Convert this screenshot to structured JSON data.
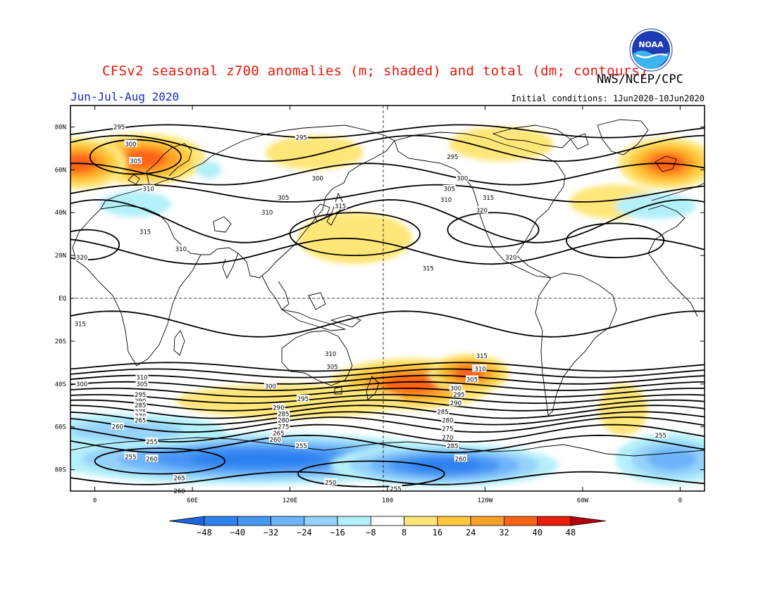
{
  "title": "CFSv2 seasonal z700 anomalies (m; shaded) and total (dm; contours)",
  "agency": "NWS/NCEP/CPC",
  "season": "Jun-Jul-Aug 2020",
  "init_conditions": "Initial conditions: 1Jun2020-10Jun2020",
  "logo_text": "NOAA",
  "colors": {
    "title": "#e8140a",
    "season": "#1428c8",
    "shades": [
      "#1e64dc",
      "#2d82f0",
      "#4696f5",
      "#6eb4fa",
      "#96d2fa",
      "#b4f0fa",
      "#ffffff",
      "#ffe678",
      "#ffc83c",
      "#ffa028",
      "#ff6414",
      "#e61e0a",
      "#b4000a"
    ]
  },
  "chart_data": {
    "type": "heatmap",
    "projection": "cylindrical-equidistant",
    "lon_range": [
      -15,
      15
    ],
    "lat_range": [
      -90,
      90
    ],
    "lat_ticks": [
      "80N",
      "60N",
      "40N",
      "20N",
      "EQ",
      "20S",
      "40S",
      "60S",
      "80S"
    ],
    "lon_ticks": [
      "0",
      "60E",
      "120E",
      "180",
      "120W",
      "60W",
      "0"
    ],
    "colorbar": {
      "bounds": [
        -48,
        -40,
        -32,
        -24,
        -16,
        -8,
        8,
        16,
        24,
        32,
        40,
        48
      ],
      "labels": [
        "−48",
        "−40",
        "−32",
        "−24",
        "−16",
        "−8",
        "8",
        "16",
        "24",
        "32",
        "40",
        "48"
      ]
    },
    "anomaly_blobs": [
      {
        "lon": 30,
        "lat": 65,
        "rlon": 38,
        "rlat": 12,
        "value": 34
      },
      {
        "lon": -10,
        "lat": 63,
        "rlon": 30,
        "rlat": 12,
        "value": 36
      },
      {
        "lon": 352,
        "lat": 63,
        "rlon": 30,
        "rlat": 12,
        "value": 36
      },
      {
        "lon": 135,
        "lat": 68,
        "rlon": 30,
        "rlat": 8,
        "value": 10
      },
      {
        "lon": 250,
        "lat": 72,
        "rlon": 32,
        "rlat": 8,
        "value": 12
      },
      {
        "lon": 320,
        "lat": 45,
        "rlon": 28,
        "rlat": 8,
        "value": 14
      },
      {
        "lon": 160,
        "lat": 28,
        "rlon": 35,
        "rlat": 12,
        "value": 12
      },
      {
        "lon": 195,
        "lat": -40,
        "rlon": 50,
        "rlat": 12,
        "value": 34
      },
      {
        "lon": 230,
        "lat": -35,
        "rlon": 25,
        "rlat": 9,
        "value": 34
      },
      {
        "lon": 120,
        "lat": -48,
        "rlon": 70,
        "rlat": 8,
        "value": 12
      },
      {
        "lon": 325,
        "lat": -52,
        "rlon": 15,
        "rlat": 12,
        "value": 10
      },
      {
        "lon": 25,
        "lat": 44,
        "rlon": 22,
        "rlat": 6,
        "value": -12
      },
      {
        "lon": 345,
        "lat": 43,
        "rlon": 25,
        "rlat": 6,
        "value": -12
      },
      {
        "lon": 70,
        "lat": 60,
        "rlon": 8,
        "rlat": 4,
        "value": -10
      },
      {
        "lon": 100,
        "lat": -75,
        "rlon": 130,
        "rlat": 12,
        "value": -40
      },
      {
        "lon": 215,
        "lat": -78,
        "rlon": 70,
        "rlat": 10,
        "value": -40
      },
      {
        "lon": 20,
        "lat": -62,
        "rlon": 60,
        "rlat": 8,
        "value": -18
      },
      {
        "lon": 355,
        "lat": -75,
        "rlon": 35,
        "rlat": 12,
        "value": -28
      }
    ],
    "contour_labels": [
      {
        "text": "295",
        "lon": 15,
        "lat": 80
      },
      {
        "text": "300",
        "lon": 22,
        "lat": 72
      },
      {
        "text": "305",
        "lon": 25,
        "lat": 64
      },
      {
        "text": "310",
        "lon": 33,
        "lat": 51
      },
      {
        "text": "315",
        "lon": 31,
        "lat": 31
      },
      {
        "text": "320",
        "lon": -8,
        "lat": 19
      },
      {
        "text": "310",
        "lon": 53,
        "lat": 23
      },
      {
        "text": "310",
        "lon": 106,
        "lat": 40
      },
      {
        "text": "305",
        "lon": 116,
        "lat": 47
      },
      {
        "text": "300",
        "lon": 137,
        "lat": 56
      },
      {
        "text": "295",
        "lon": 127,
        "lat": 75
      },
      {
        "text": "315",
        "lon": 151,
        "lat": 43
      },
      {
        "text": "295",
        "lon": 220,
        "lat": 66
      },
      {
        "text": "300",
        "lon": 226,
        "lat": 56
      },
      {
        "text": "305",
        "lon": 218,
        "lat": 51
      },
      {
        "text": "310",
        "lon": 216,
        "lat": 46
      },
      {
        "text": "315",
        "lon": 242,
        "lat": 47
      },
      {
        "text": "320",
        "lon": 238,
        "lat": 41
      },
      {
        "text": "320",
        "lon": 256,
        "lat": 19
      },
      {
        "text": "315",
        "lon": 205,
        "lat": 14
      },
      {
        "text": "315",
        "lon": -9,
        "lat": -12
      },
      {
        "text": "315",
        "lon": 238,
        "lat": -27
      },
      {
        "text": "310",
        "lon": 236,
        "lat": -33
      },
      {
        "text": "310",
        "lon": 145,
        "lat": -26
      },
      {
        "text": "305",
        "lon": 146,
        "lat": -32
      },
      {
        "text": "300",
        "lon": 108,
        "lat": -41
      },
      {
        "text": "295",
        "lon": 128,
        "lat": -47
      },
      {
        "text": "290",
        "lon": 113,
        "lat": -51
      },
      {
        "text": "285",
        "lon": 116,
        "lat": -54
      },
      {
        "text": "280",
        "lon": 116,
        "lat": -57
      },
      {
        "text": "275",
        "lon": 116,
        "lat": -60
      },
      {
        "text": "265",
        "lon": 113,
        "lat": -63
      },
      {
        "text": "260",
        "lon": 111,
        "lat": -66
      },
      {
        "text": "255",
        "lon": 127,
        "lat": -69
      },
      {
        "text": "250",
        "lon": 145,
        "lat": -86
      },
      {
        "text": "255",
        "lon": 185,
        "lat": -89
      },
      {
        "text": "260",
        "lon": 225,
        "lat": -75
      },
      {
        "text": "285",
        "lon": 220,
        "lat": -69
      },
      {
        "text": "270",
        "lon": 217,
        "lat": -65
      },
      {
        "text": "275",
        "lon": 217,
        "lat": -61
      },
      {
        "text": "280",
        "lon": 217,
        "lat": -57
      },
      {
        "text": "285",
        "lon": 214,
        "lat": -53
      },
      {
        "text": "290",
        "lon": 222,
        "lat": -49
      },
      {
        "text": "295",
        "lon": 224,
        "lat": -45
      },
      {
        "text": "300",
        "lon": 222,
        "lat": -42
      },
      {
        "text": "305",
        "lon": 232,
        "lat": -38
      },
      {
        "text": "310",
        "lon": 237,
        "lat": -33
      },
      {
        "text": "310",
        "lon": 29,
        "lat": -37
      },
      {
        "text": "305",
        "lon": 29,
        "lat": -40
      },
      {
        "text": "300",
        "lon": -8,
        "lat": -40
      },
      {
        "text": "295",
        "lon": 28,
        "lat": -45
      },
      {
        "text": "290",
        "lon": 28,
        "lat": -48
      },
      {
        "text": "285",
        "lon": 28,
        "lat": -50
      },
      {
        "text": "275",
        "lon": 28,
        "lat": -53
      },
      {
        "text": "270",
        "lon": 28,
        "lat": -55
      },
      {
        "text": "265",
        "lon": 28,
        "lat": -57
      },
      {
        "text": "260",
        "lon": 14,
        "lat": -60
      },
      {
        "text": "255",
        "lon": 35,
        "lat": -67
      },
      {
        "text": "255",
        "lon": 22,
        "lat": -74
      },
      {
        "text": "260",
        "lon": 35,
        "lat": -75
      },
      {
        "text": "265",
        "lon": 52,
        "lat": -84
      },
      {
        "text": "260",
        "lon": 52,
        "lat": -90
      },
      {
        "text": "255",
        "lon": 348,
        "lat": -64
      }
    ]
  }
}
